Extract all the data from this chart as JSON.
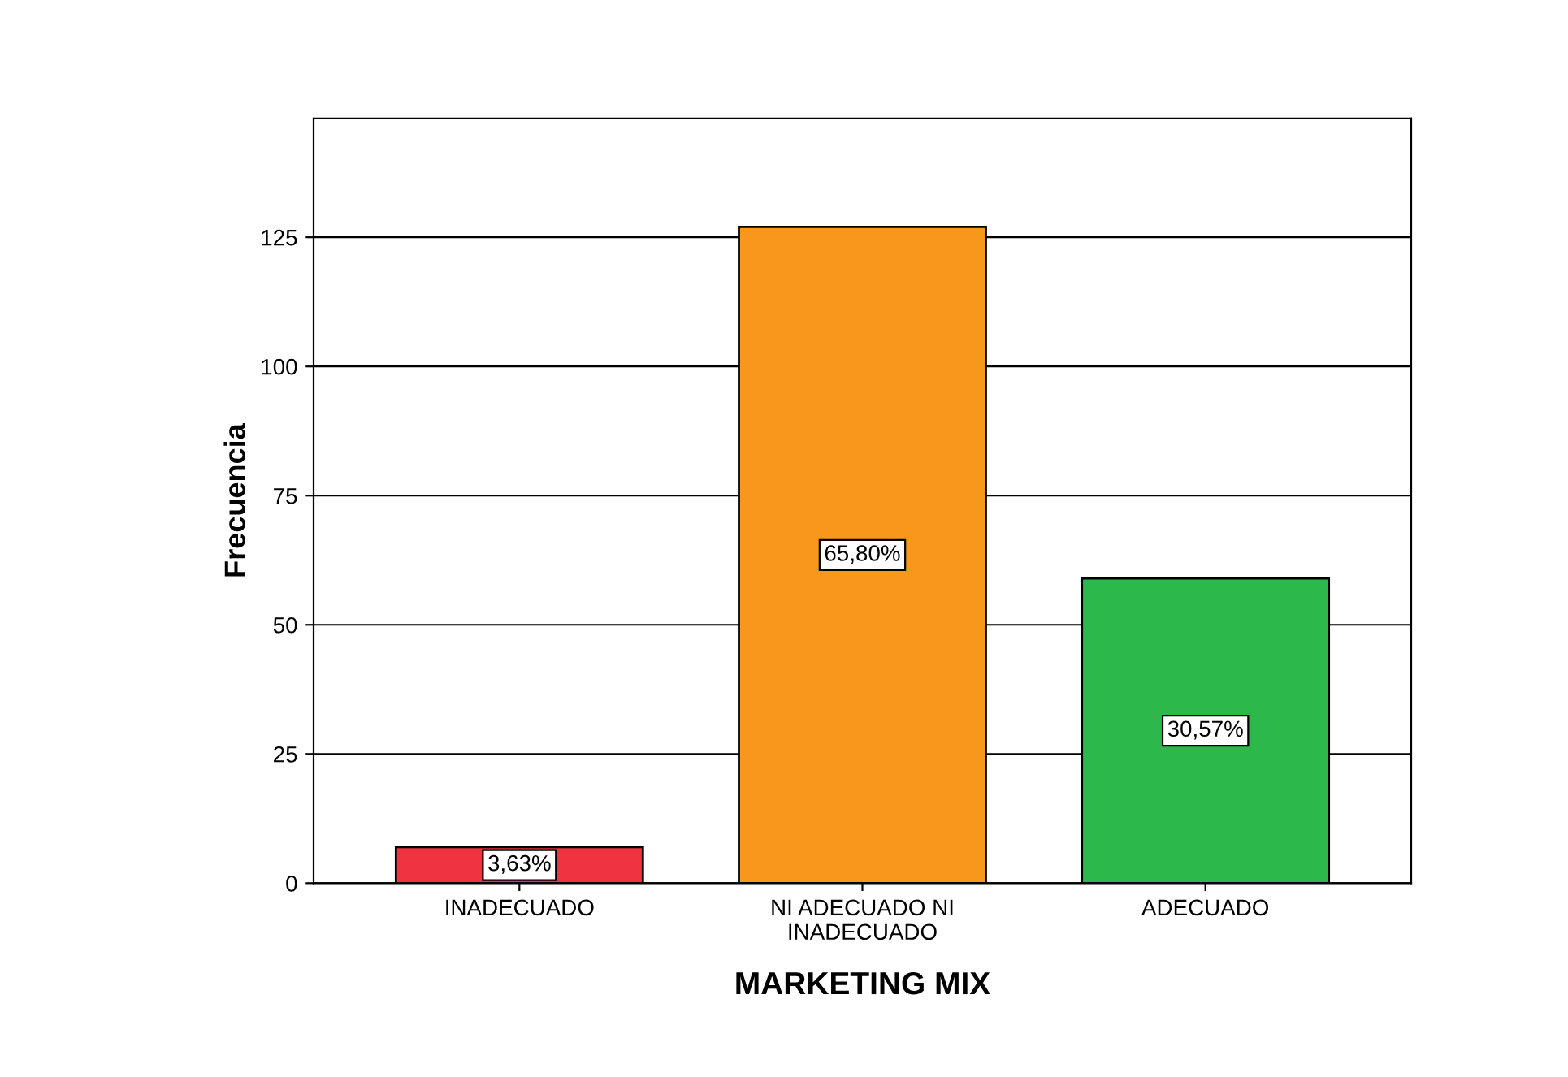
{
  "chart_data": {
    "type": "bar",
    "xlabel": "MARKETING MIX",
    "ylabel": "Frecuencia",
    "categories": [
      "INADECUADO",
      "NI ADECUADO NI\nINADECUADO",
      "ADECUADO"
    ],
    "values": [
      7,
      127,
      59
    ],
    "colors": [
      "#ef3340",
      "#f7981d",
      "#2db84b"
    ],
    "annotations": [
      "3,63%",
      "65,80%",
      "30,57%"
    ],
    "ylim": [
      0,
      148
    ],
    "yticks": [
      0,
      25,
      50,
      75,
      100,
      125
    ],
    "grid": true
  }
}
